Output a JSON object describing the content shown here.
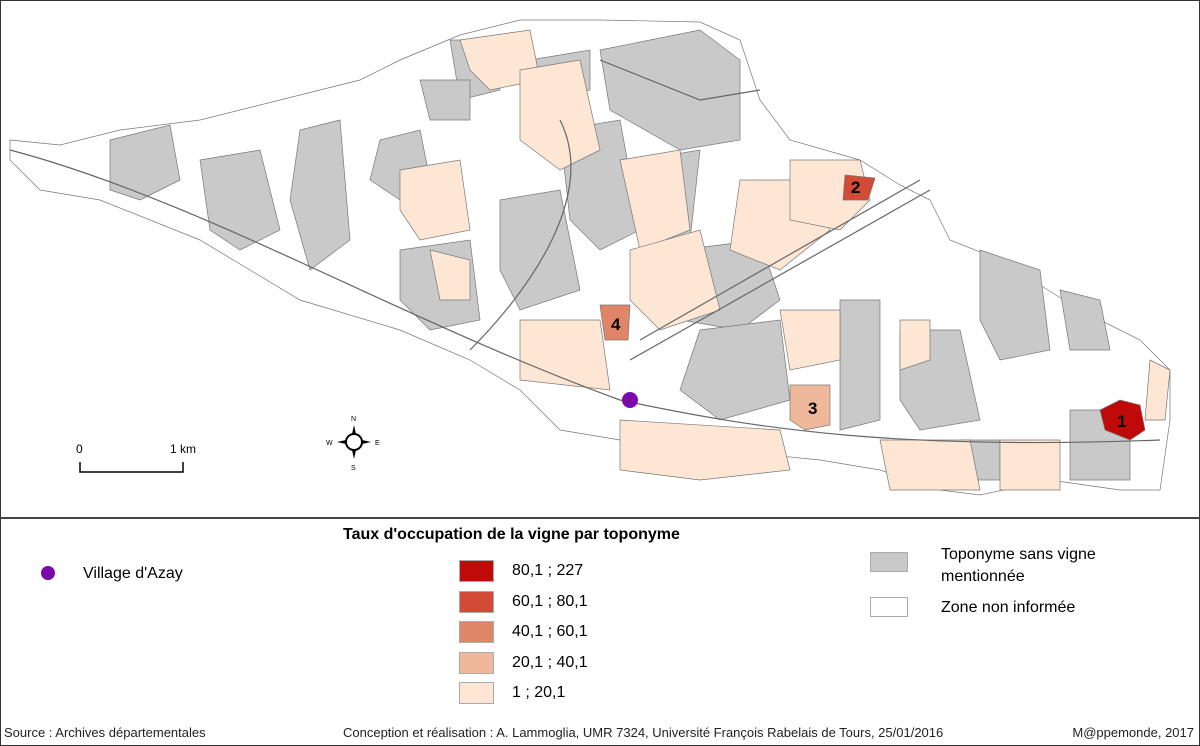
{
  "map": {
    "labels": [
      "1",
      "2",
      "3",
      "4"
    ],
    "scale_bar": {
      "start": "0",
      "end": "1 km"
    },
    "compass": {
      "n": "N",
      "s": "S",
      "e": "E",
      "w": "W"
    },
    "colors": {
      "class_1": "#c00a0a",
      "class_2": "#d34a36",
      "class_3": "#e08568",
      "class_4": "#f0b89a",
      "class_5": "#fde7d4",
      "no_vine": "#c9c9c9",
      "uninformed": "#ffffff",
      "village": "#7a0aa8"
    }
  },
  "legend": {
    "title": "Taux d'occupation de la vigne par toponyme",
    "village": "Village d'Azay",
    "classes": [
      "80,1 ; 227",
      "60,1 ; 80,1",
      "40,1 ; 60,1",
      "20,1 ; 40,1",
      "1 ; 20,1"
    ],
    "no_vine": "Toponyme sans vigne mentionnée",
    "uninformed": "Zone non informée"
  },
  "footer": {
    "source": "Source :  Archives départementales",
    "credit": "Conception et réalisation : A. Lammoglia, UMR 7324, Université François Rabelais de Tours, 25/01/2016",
    "publisher": "M@ppemonde, 2017"
  }
}
